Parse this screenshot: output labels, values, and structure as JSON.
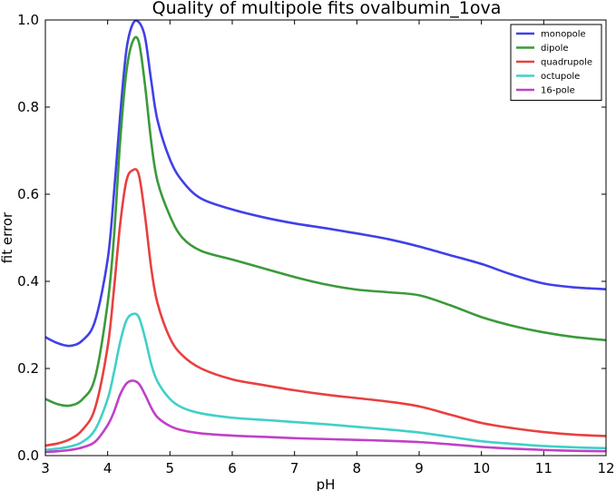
{
  "chart_data": {
    "type": "line",
    "title": "Quality of multipole fits ovalbumin_1ova",
    "xlabel": "pH",
    "ylabel": "fit error",
    "xlim": [
      3,
      12
    ],
    "ylim": [
      0,
      1.0
    ],
    "xticks": [
      "3",
      "4",
      "5",
      "6",
      "7",
      "8",
      "9",
      "10",
      "11",
      "12"
    ],
    "yticks": [
      "0.0",
      "0.2",
      "0.4",
      "0.6",
      "0.8",
      "1.0"
    ],
    "grid": false,
    "legend_position": "top-right",
    "series": [
      {
        "name": "monopole",
        "color": "#4040e8",
        "x": [
          3.0,
          3.2,
          3.4,
          3.6,
          3.8,
          4.0,
          4.1,
          4.2,
          4.3,
          4.4,
          4.5,
          4.6,
          4.7,
          4.8,
          5.0,
          5.2,
          5.5,
          6.0,
          6.5,
          7.0,
          7.5,
          8.0,
          8.5,
          9.0,
          9.5,
          10.0,
          10.5,
          11.0,
          11.5,
          12.0
        ],
        "y": [
          0.272,
          0.258,
          0.252,
          0.265,
          0.31,
          0.45,
          0.6,
          0.78,
          0.93,
          0.99,
          0.995,
          0.96,
          0.86,
          0.77,
          0.68,
          0.63,
          0.59,
          0.565,
          0.547,
          0.533,
          0.522,
          0.51,
          0.497,
          0.48,
          0.46,
          0.44,
          0.415,
          0.395,
          0.386,
          0.382
        ]
      },
      {
        "name": "dipole",
        "color": "#3a9a3a",
        "x": [
          3.0,
          3.2,
          3.4,
          3.6,
          3.8,
          4.0,
          4.1,
          4.2,
          4.3,
          4.4,
          4.5,
          4.6,
          4.7,
          4.8,
          5.0,
          5.2,
          5.5,
          6.0,
          6.5,
          7.0,
          7.5,
          8.0,
          8.5,
          9.0,
          9.5,
          10.0,
          10.5,
          11.0,
          11.5,
          12.0
        ],
        "y": [
          0.13,
          0.118,
          0.115,
          0.13,
          0.18,
          0.35,
          0.5,
          0.72,
          0.88,
          0.95,
          0.95,
          0.85,
          0.72,
          0.63,
          0.55,
          0.5,
          0.47,
          0.45,
          0.43,
          0.41,
          0.393,
          0.381,
          0.375,
          0.368,
          0.345,
          0.318,
          0.298,
          0.283,
          0.272,
          0.265
        ]
      },
      {
        "name": "quadrupole",
        "color": "#e84040",
        "x": [
          3.0,
          3.2,
          3.4,
          3.6,
          3.8,
          4.0,
          4.1,
          4.2,
          4.3,
          4.4,
          4.5,
          4.6,
          4.7,
          4.8,
          5.0,
          5.2,
          5.5,
          6.0,
          6.5,
          7.0,
          7.5,
          8.0,
          8.5,
          9.0,
          9.5,
          10.0,
          10.5,
          11.0,
          11.5,
          12.0
        ],
        "y": [
          0.023,
          0.028,
          0.038,
          0.06,
          0.11,
          0.25,
          0.38,
          0.53,
          0.63,
          0.655,
          0.645,
          0.55,
          0.43,
          0.35,
          0.27,
          0.23,
          0.2,
          0.175,
          0.162,
          0.15,
          0.14,
          0.132,
          0.124,
          0.113,
          0.094,
          0.075,
          0.063,
          0.054,
          0.048,
          0.045
        ]
      },
      {
        "name": "octupole",
        "color": "#40d0c8",
        "x": [
          3.0,
          3.2,
          3.4,
          3.6,
          3.8,
          4.0,
          4.1,
          4.2,
          4.3,
          4.4,
          4.5,
          4.6,
          4.7,
          4.8,
          5.0,
          5.2,
          5.5,
          6.0,
          6.5,
          7.0,
          7.5,
          8.0,
          8.5,
          9.0,
          9.5,
          10.0,
          10.5,
          11.0,
          11.5,
          12.0
        ],
        "y": [
          0.013,
          0.016,
          0.021,
          0.032,
          0.06,
          0.13,
          0.19,
          0.26,
          0.31,
          0.325,
          0.318,
          0.27,
          0.21,
          0.17,
          0.13,
          0.11,
          0.097,
          0.087,
          0.082,
          0.077,
          0.072,
          0.066,
          0.06,
          0.053,
          0.043,
          0.033,
          0.027,
          0.022,
          0.019,
          0.017
        ]
      },
      {
        "name": "16-pole",
        "color": "#c040c8",
        "x": [
          3.0,
          3.2,
          3.4,
          3.6,
          3.8,
          4.0,
          4.1,
          4.2,
          4.3,
          4.4,
          4.5,
          4.6,
          4.7,
          4.8,
          5.0,
          5.2,
          5.5,
          6.0,
          6.5,
          7.0,
          7.5,
          8.0,
          8.5,
          9.0,
          9.5,
          10.0,
          10.5,
          11.0,
          11.5,
          12.0
        ],
        "y": [
          0.008,
          0.01,
          0.013,
          0.019,
          0.032,
          0.07,
          0.1,
          0.14,
          0.165,
          0.172,
          0.165,
          0.14,
          0.11,
          0.088,
          0.068,
          0.058,
          0.051,
          0.046,
          0.043,
          0.04,
          0.038,
          0.036,
          0.034,
          0.031,
          0.026,
          0.02,
          0.016,
          0.013,
          0.011,
          0.01
        ]
      }
    ]
  }
}
